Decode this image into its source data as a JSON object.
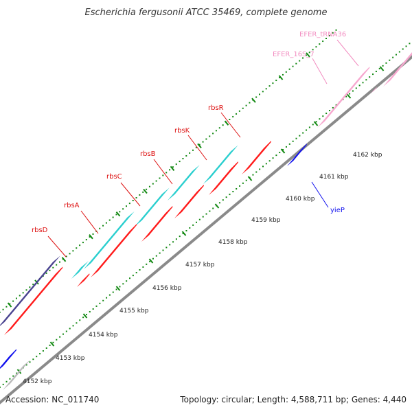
{
  "title": "Escherichia fergusonii ATCC 35469, complete genome",
  "footer": {
    "accession": "Accession: NC_011740",
    "summary": "Topology: circular; Length: 4,588,711 bp; Genes: 4,440"
  },
  "colors": {
    "rbs_label": "#dd1111",
    "cds_red": "#ff1a1a",
    "cds_cyan": "#2bcfcf",
    "cds_purple": "#4a4490",
    "cds_blue": "#1010ee",
    "rna_pink": "#f7a8cf",
    "rna_label": "#f28cc0",
    "backbone": "#8a8a8a",
    "tick": "#118811",
    "grey_feature": "#bbbbbb"
  },
  "kbp_labels": [
    "4152 kbp",
    "4153 kbp",
    "4154 kbp",
    "4155 kbp",
    "4156 kbp",
    "4157 kbp",
    "4158 kbp",
    "4159 kbp",
    "4160 kbp",
    "4161 kbp",
    "4162 kbp"
  ],
  "gene_labels": [
    {
      "text": "rbsD",
      "color": "rbs_label"
    },
    {
      "text": "rbsA",
      "color": "rbs_label"
    },
    {
      "text": "rbsC",
      "color": "rbs_label"
    },
    {
      "text": "rbsB",
      "color": "rbs_label"
    },
    {
      "text": "rbsK",
      "color": "rbs_label"
    },
    {
      "text": "rbsR",
      "color": "rbs_label"
    },
    {
      "text": "EFER_16S_7",
      "color": "rna_label"
    },
    {
      "text": "EFER_tRNA36",
      "color": "rna_label"
    },
    {
      "text": "yieP",
      "color": "cds_blue"
    }
  ]
}
